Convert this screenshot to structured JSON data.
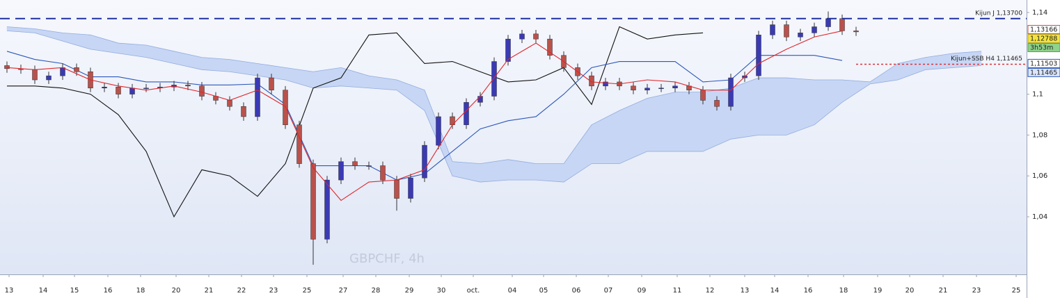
{
  "chart_data": {
    "type": "candlestick",
    "title": "GBPCHF, 4h",
    "up_color": "#3a3ab4",
    "down_color": "#b9524c",
    "wick_color": "#333333",
    "open": [
      1.114,
      1.1125,
      1.112,
      1.107,
      1.109,
      1.113,
      1.111,
      1.103,
      1.1035,
      1.1,
      1.103,
      1.103,
      1.1035,
      1.1045,
      1.104,
      1.099,
      1.097,
      1.094,
      1.089,
      1.108,
      1.102,
      1.085,
      1.066,
      1.029,
      1.058,
      1.067,
      1.065,
      1.065,
      1.058,
      1.049,
      1.059,
      1.075,
      1.089,
      1.085,
      1.096,
      1.099,
      1.116,
      1.127,
      1.1295,
      1.127,
      1.119,
      1.113,
      1.109,
      1.104,
      1.106,
      1.104,
      1.102,
      1.103,
      1.103,
      1.104,
      1.102,
      1.097,
      1.094,
      1.108,
      1.109,
      1.129,
      1.134,
      1.128,
      1.13,
      1.133,
      1.137,
      1.131
    ],
    "high": [
      1.116,
      1.1145,
      1.114,
      1.111,
      1.115,
      1.115,
      1.113,
      1.1055,
      1.1055,
      1.105,
      1.105,
      1.1055,
      1.1065,
      1.1065,
      1.106,
      1.101,
      1.099,
      1.096,
      1.11,
      1.11,
      1.104,
      1.087,
      1.068,
      1.06,
      1.069,
      1.069,
      1.067,
      1.067,
      1.06,
      1.061,
      1.077,
      1.091,
      1.091,
      1.098,
      1.101,
      1.118,
      1.129,
      1.1315,
      1.1315,
      1.129,
      1.121,
      1.115,
      1.111,
      1.108,
      1.108,
      1.106,
      1.105,
      1.105,
      1.106,
      1.106,
      1.104,
      1.099,
      1.11,
      1.111,
      1.131,
      1.136,
      1.136,
      1.132,
      1.135,
      1.1405,
      1.139,
      1.133
    ],
    "low": [
      1.1105,
      1.11,
      1.105,
      1.105,
      1.107,
      1.109,
      1.101,
      1.101,
      1.098,
      1.098,
      1.101,
      1.101,
      1.1015,
      1.102,
      1.097,
      1.095,
      1.092,
      1.087,
      1.087,
      1.1,
      1.083,
      1.064,
      1.0165,
      1.027,
      1.056,
      1.063,
      1.063,
      1.056,
      1.043,
      1.047,
      1.057,
      1.073,
      1.083,
      1.083,
      1.094,
      1.097,
      1.114,
      1.125,
      1.125,
      1.117,
      1.111,
      1.107,
      1.102,
      1.102,
      1.102,
      1.1,
      1.1,
      1.101,
      1.101,
      1.1,
      1.095,
      1.092,
      1.092,
      1.106,
      1.107,
      1.127,
      1.126,
      1.126,
      1.128,
      1.131,
      1.129,
      1.1285
    ],
    "close": [
      1.1125,
      1.112,
      1.107,
      1.109,
      1.113,
      1.111,
      1.103,
      1.1035,
      1.1,
      1.103,
      1.103,
      1.1035,
      1.1045,
      1.104,
      1.099,
      1.097,
      1.094,
      1.089,
      1.108,
      1.102,
      1.085,
      1.066,
      1.029,
      1.058,
      1.067,
      1.065,
      1.065,
      1.058,
      1.049,
      1.059,
      1.075,
      1.089,
      1.085,
      1.096,
      1.099,
      1.116,
      1.127,
      1.1295,
      1.127,
      1.119,
      1.113,
      1.109,
      1.104,
      1.106,
      1.104,
      1.102,
      1.103,
      1.103,
      1.104,
      1.102,
      1.097,
      1.094,
      1.108,
      1.109,
      1.129,
      1.134,
      1.128,
      1.13,
      1.133,
      1.137,
      1.131,
      1.1305
    ],
    "ichimoku": {
      "x": [
        0,
        2,
        4,
        6,
        8,
        10,
        12,
        14,
        16,
        18,
        20,
        22,
        24,
        26,
        28,
        30,
        32,
        34,
        36,
        38,
        40,
        42,
        44,
        46,
        48,
        50,
        52,
        54,
        56,
        58,
        60,
        62,
        64,
        66,
        68,
        70
      ],
      "cloud_color": "#c7d6f4",
      "cloud_edge_color": "#93acdf",
      "tenkan": {
        "color": "#e0262b",
        "values": [
          1.113,
          1.112,
          1.113,
          1.107,
          1.104,
          1.102,
          1.104,
          1.101,
          1.097,
          1.102,
          1.094,
          1.064,
          1.048,
          1.057,
          1.058,
          1.063,
          1.085,
          1.099,
          1.117,
          1.125,
          1.116,
          1.106,
          1.105,
          1.107,
          1.106,
          1.102,
          1.102,
          1.115,
          1.122,
          1.128,
          1.131,
          null,
          null,
          null,
          null,
          null
        ]
      },
      "kijun": {
        "color": "#2c57b8",
        "values": [
          1.121,
          1.117,
          1.115,
          1.1085,
          1.1085,
          1.106,
          1.106,
          1.1045,
          1.1045,
          1.105,
          1.095,
          1.065,
          1.065,
          1.065,
          1.058,
          1.061,
          1.072,
          1.083,
          1.087,
          1.089,
          1.1,
          1.113,
          1.116,
          1.116,
          1.116,
          1.106,
          1.107,
          1.119,
          1.119,
          1.119,
          1.1165,
          null,
          null,
          null,
          null,
          null
        ]
      },
      "chikou": {
        "color": "#111111",
        "values": [
          1.104,
          1.104,
          1.103,
          1.1,
          1.09,
          1.072,
          1.04,
          1.063,
          1.06,
          1.05,
          1.066,
          1.103,
          1.108,
          1.129,
          1.13,
          1.115,
          1.116,
          1.111,
          1.106,
          1.107,
          1.113,
          1.095,
          1.133,
          1.127,
          1.129,
          1.13,
          null,
          null,
          null,
          null,
          null,
          null,
          null,
          null,
          null,
          null
        ]
      },
      "span_a": {
        "values": [
          1.133,
          1.132,
          1.13,
          1.129,
          1.125,
          1.124,
          1.121,
          1.118,
          1.117,
          1.115,
          1.113,
          1.111,
          1.113,
          1.109,
          1.107,
          1.102,
          1.067,
          1.066,
          1.068,
          1.066,
          1.066,
          1.085,
          1.092,
          1.098,
          1.101,
          1.101,
          1.103,
          1.108,
          1.108,
          1.107,
          1.107,
          1.106,
          1.115,
          1.118,
          1.12,
          1.121
        ]
      },
      "span_b": {
        "values": [
          1.131,
          1.13,
          1.126,
          1.122,
          1.12,
          1.118,
          1.115,
          1.112,
          1.111,
          1.109,
          1.107,
          1.103,
          1.104,
          1.103,
          1.102,
          1.092,
          1.06,
          1.057,
          1.058,
          1.058,
          1.057,
          1.066,
          1.066,
          1.072,
          1.072,
          1.072,
          1.078,
          1.08,
          1.08,
          1.085,
          1.096,
          1.105,
          1.107,
          1.112,
          1.113,
          1.114
        ]
      }
    },
    "levels": [
      {
        "value": 1.137,
        "label": "Kijun J 1,13700",
        "color": "#1f2f9e",
        "style": "dashed"
      },
      {
        "value": 1.11465,
        "label": "Kijun+SSB H4 1,11465",
        "color": "#d8323a",
        "style": "dotted"
      }
    ],
    "price_tags": [
      {
        "value": 1.13166,
        "label": "1,13166",
        "background": "#ffffff",
        "border": "#c0504d"
      },
      {
        "value": 1.12788,
        "label": "1,12788",
        "background": "#f2e33f",
        "border": "#b9a82a"
      },
      {
        "label": "3h53m",
        "background": "#8fd28a",
        "border": "#5a9e56"
      },
      {
        "value": 1.11503,
        "label": "1,11503",
        "background": "#ffffff",
        "border": "#2c57b8"
      },
      {
        "value": 1.11465,
        "label": "1,11465",
        "background": "#dbe6fb",
        "border": "#2c57b8"
      }
    ],
    "xlim": [
      -0.5,
      73.25
    ],
    "xticks": [
      {
        "value": 0.15,
        "label": "13"
      },
      {
        "value": 2.6,
        "label": "14"
      },
      {
        "value": 4.85,
        "label": "15"
      },
      {
        "value": 7.25,
        "label": "16"
      },
      {
        "value": 9.6,
        "label": "18"
      },
      {
        "value": 12.15,
        "label": "20"
      },
      {
        "value": 14.5,
        "label": "21"
      },
      {
        "value": 16.85,
        "label": "22"
      },
      {
        "value": 19.15,
        "label": "23"
      },
      {
        "value": 21.55,
        "label": "25"
      },
      {
        "value": 24.15,
        "label": "27"
      },
      {
        "value": 26.5,
        "label": "28"
      },
      {
        "value": 28.9,
        "label": "29"
      },
      {
        "value": 31.2,
        "label": "30"
      },
      {
        "value": 33.5,
        "label": "oct."
      },
      {
        "value": 36.3,
        "label": "04"
      },
      {
        "value": 38.55,
        "label": "05"
      },
      {
        "value": 40.9,
        "label": "06"
      },
      {
        "value": 43.2,
        "label": "07"
      },
      {
        "value": 45.6,
        "label": "09"
      },
      {
        "value": 48.15,
        "label": "11"
      },
      {
        "value": 50.5,
        "label": "12"
      },
      {
        "value": 53,
        "label": "13"
      },
      {
        "value": 55.15,
        "label": "14"
      },
      {
        "value": 57.55,
        "label": "16"
      },
      {
        "value": 60.1,
        "label": "18"
      },
      {
        "value": 62.55,
        "label": "19"
      },
      {
        "value": 64.85,
        "label": "20"
      },
      {
        "value": 67.25,
        "label": "21"
      },
      {
        "value": 69.65,
        "label": "23"
      },
      {
        "value": 72.5,
        "label": "25"
      }
    ],
    "ylim": [
      1.0118,
      1.1461
    ],
    "yticks": [
      {
        "value": 1.04,
        "label": "1,04"
      },
      {
        "value": 1.06,
        "label": "1,06"
      },
      {
        "value": 1.08,
        "label": "1,08"
      },
      {
        "value": 1.1,
        "label": "1,1"
      },
      {
        "value": 1.14,
        "label": "1,14"
      }
    ]
  }
}
